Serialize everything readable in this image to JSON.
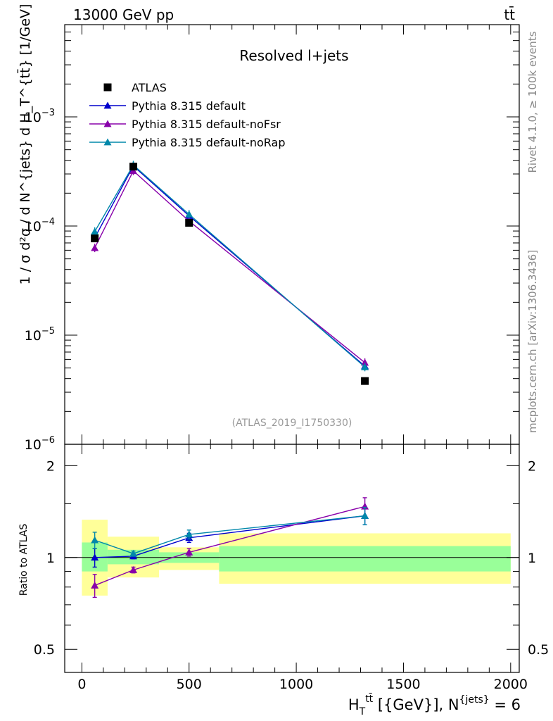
{
  "header": {
    "energy_label": "13000 GeV pp",
    "process_label": "tt̄",
    "side_rivet": "Rivet 4.1.0, ≥ 100k events",
    "side_site": "mcplots.cern.ch [arXiv:1306.3436]"
  },
  "chart_data": {
    "type": "line",
    "title": "Resolved l+jets",
    "analysis_id": "(ATLAS_2019_I1750330)",
    "xlabel_main": "H",
    "xlabel_sub": "T",
    "xlabel_sup": "tt̄",
    "xlabel_rest": " [{GeV}], N",
    "xlabel_sup2": "{jets}",
    "xlabel_end": " = 6",
    "ylabel": "1 / σ d²σ / d N^{jets} d H_T^{tt̄} [1/GeV]",
    "ratio_ylabel": "Ratio to ATLAS",
    "xlim": [
      -80,
      2040
    ],
    "ylim": [
      1e-06,
      0.007
    ],
    "ratio_ylim": [
      0.42,
      2.35
    ],
    "x_ticks": [
      {
        "value": 0,
        "label": "0"
      },
      {
        "value": 500,
        "label": "500"
      },
      {
        "value": 1000,
        "label": "1000"
      },
      {
        "value": 1500,
        "label": "1500"
      },
      {
        "value": 2000,
        "label": "2000"
      }
    ],
    "y_ticks": [
      {
        "value": 1e-06,
        "base": "10",
        "exp": "−6"
      },
      {
        "value": 1e-05,
        "base": "10",
        "exp": "−5"
      },
      {
        "value": 0.0001,
        "base": "10",
        "exp": "−4"
      },
      {
        "value": 0.001,
        "base": "10",
        "exp": "−3"
      }
    ],
    "ratio_ticks": [
      {
        "value": 0.5,
        "label": "0.5"
      },
      {
        "value": 1,
        "label": "1"
      },
      {
        "value": 2,
        "label": "2"
      }
    ],
    "bins": [
      {
        "lo": 0,
        "hi": 120
      },
      {
        "lo": 120,
        "hi": 360
      },
      {
        "lo": 360,
        "hi": 640
      },
      {
        "lo": 640,
        "hi": 2000
      }
    ],
    "data": {
      "name": "ATLAS",
      "color": "#000000",
      "x": [
        60,
        240,
        500,
        1320
      ],
      "y": [
        7.7e-05,
        0.00035,
        0.000107,
        3.8e-06
      ],
      "band_inner": [
        [
          0.9,
          1.12
        ],
        [
          0.95,
          1.06
        ],
        [
          0.96,
          1.04
        ],
        [
          0.9,
          1.09
        ]
      ],
      "band_outer": [
        [
          0.75,
          1.33
        ],
        [
          0.86,
          1.17
        ],
        [
          0.91,
          1.08
        ],
        [
          0.82,
          1.2
        ]
      ]
    },
    "series": [
      {
        "name": "Pythia 8.315 default",
        "color": "#0000cc",
        "x": [
          60,
          240,
          500,
          1320
        ],
        "y": [
          7.8e-05,
          0.000355,
          0.000124,
          5.2e-06
        ],
        "ratio": [
          1.0,
          1.01,
          1.16,
          1.37
        ],
        "ratio_err": [
          0.07,
          0.02,
          0.04,
          0.09
        ]
      },
      {
        "name": "Pythia 8.315 default-noFsr",
        "color": "#8800aa",
        "x": [
          60,
          240,
          500,
          1320
        ],
        "y": [
          6.3e-05,
          0.00032,
          0.000111,
          5.6e-06
        ],
        "ratio": [
          0.81,
          0.91,
          1.04,
          1.47
        ],
        "ratio_err": [
          0.07,
          0.02,
          0.03,
          0.1
        ]
      },
      {
        "name": "Pythia 8.315 default-noRap",
        "color": "#0088aa",
        "x": [
          60,
          240,
          500,
          1320
        ],
        "y": [
          8.9e-05,
          0.000362,
          0.000128,
          5.1e-06
        ],
        "ratio": [
          1.14,
          1.03,
          1.19,
          1.37
        ],
        "ratio_err": [
          0.07,
          0.02,
          0.04,
          0.09
        ]
      }
    ]
  }
}
